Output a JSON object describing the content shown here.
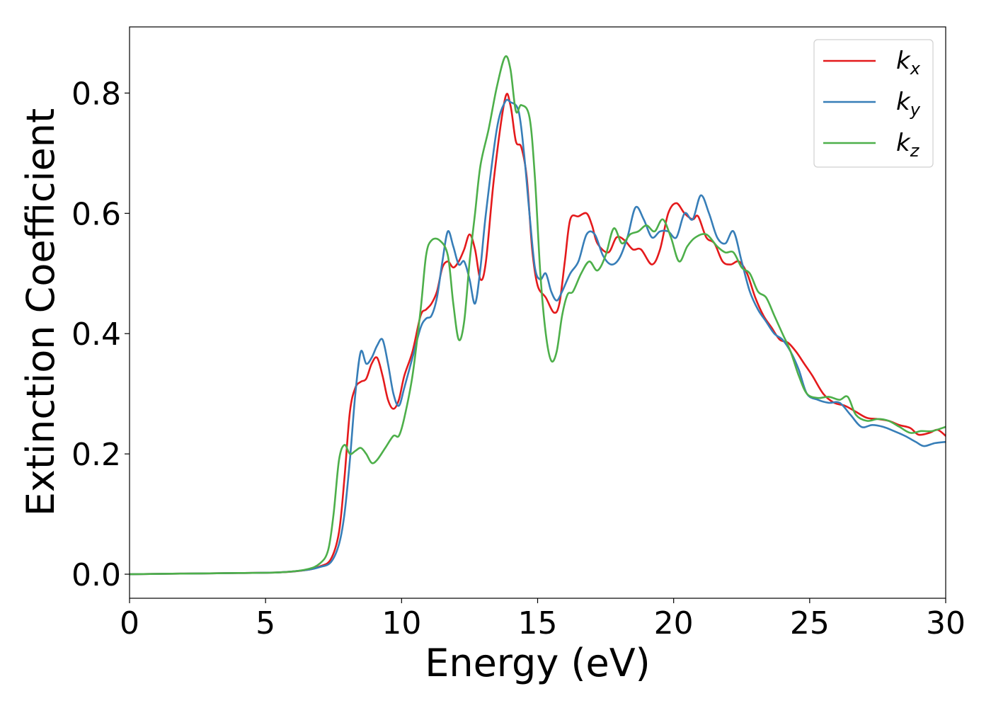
{
  "chart_data": {
    "type": "line",
    "xlabel": "Energy (eV)",
    "ylabel": "Extinction Coefficient",
    "xlim": [
      0,
      30
    ],
    "ylim": [
      -0.04,
      0.91
    ],
    "x_ticks": [
      "0",
      "5",
      "10",
      "15",
      "20",
      "25",
      "30"
    ],
    "y_ticks": [
      "0.0",
      "0.2",
      "0.4",
      "0.6",
      "0.8"
    ],
    "grid": false,
    "legend_position": "top-right",
    "series": [
      {
        "name": "kx",
        "base": "k",
        "sub": "x",
        "color": "#e41a1c",
        "points": [
          [
            0,
            0
          ],
          [
            2,
            0.001
          ],
          [
            4,
            0.002
          ],
          [
            5.5,
            0.003
          ],
          [
            6.5,
            0.007
          ],
          [
            7,
            0.013
          ],
          [
            7.4,
            0.025
          ],
          [
            7.7,
            0.07
          ],
          [
            7.9,
            0.16
          ],
          [
            8.1,
            0.27
          ],
          [
            8.3,
            0.31
          ],
          [
            8.5,
            0.32
          ],
          [
            8.7,
            0.325
          ],
          [
            8.9,
            0.35
          ],
          [
            9.1,
            0.36
          ],
          [
            9.3,
            0.33
          ],
          [
            9.5,
            0.29
          ],
          [
            9.7,
            0.275
          ],
          [
            9.9,
            0.29
          ],
          [
            10.1,
            0.33
          ],
          [
            10.4,
            0.37
          ],
          [
            10.7,
            0.43
          ],
          [
            10.9,
            0.44
          ],
          [
            11.1,
            0.45
          ],
          [
            11.3,
            0.47
          ],
          [
            11.5,
            0.51
          ],
          [
            11.7,
            0.52
          ],
          [
            11.9,
            0.51
          ],
          [
            12.1,
            0.52
          ],
          [
            12.3,
            0.54
          ],
          [
            12.5,
            0.565
          ],
          [
            12.7,
            0.54
          ],
          [
            12.9,
            0.49
          ],
          [
            13.1,
            0.52
          ],
          [
            13.4,
            0.66
          ],
          [
            13.8,
            0.79
          ],
          [
            14.0,
            0.78
          ],
          [
            14.2,
            0.72
          ],
          [
            14.4,
            0.71
          ],
          [
            14.6,
            0.66
          ],
          [
            14.8,
            0.54
          ],
          [
            15.0,
            0.48
          ],
          [
            15.3,
            0.46
          ],
          [
            15.6,
            0.435
          ],
          [
            15.8,
            0.45
          ],
          [
            16.0,
            0.52
          ],
          [
            16.2,
            0.59
          ],
          [
            16.5,
            0.595
          ],
          [
            16.8,
            0.6
          ],
          [
            17.0,
            0.58
          ],
          [
            17.2,
            0.55
          ],
          [
            17.6,
            0.535
          ],
          [
            17.9,
            0.56
          ],
          [
            18.2,
            0.555
          ],
          [
            18.5,
            0.54
          ],
          [
            18.8,
            0.54
          ],
          [
            19.2,
            0.515
          ],
          [
            19.5,
            0.54
          ],
          [
            19.8,
            0.6
          ],
          [
            20.1,
            0.617
          ],
          [
            20.4,
            0.6
          ],
          [
            20.7,
            0.59
          ],
          [
            20.9,
            0.595
          ],
          [
            21.2,
            0.56
          ],
          [
            21.5,
            0.55
          ],
          [
            21.8,
            0.52
          ],
          [
            22.1,
            0.515
          ],
          [
            22.4,
            0.52
          ],
          [
            22.7,
            0.5
          ],
          [
            23.0,
            0.46
          ],
          [
            23.3,
            0.43
          ],
          [
            23.6,
            0.41
          ],
          [
            23.9,
            0.39
          ],
          [
            24.2,
            0.385
          ],
          [
            24.5,
            0.37
          ],
          [
            24.8,
            0.35
          ],
          [
            25.1,
            0.33
          ],
          [
            25.5,
            0.3
          ],
          [
            25.9,
            0.285
          ],
          [
            26.3,
            0.28
          ],
          [
            26.7,
            0.27
          ],
          [
            27.1,
            0.26
          ],
          [
            27.5,
            0.258
          ],
          [
            27.9,
            0.255
          ],
          [
            28.3,
            0.248
          ],
          [
            28.7,
            0.243
          ],
          [
            29.0,
            0.232
          ],
          [
            29.4,
            0.235
          ],
          [
            29.7,
            0.24
          ],
          [
            30,
            0.23
          ]
        ]
      },
      {
        "name": "ky",
        "base": "k",
        "sub": "y",
        "color": "#377eb8",
        "points": [
          [
            0,
            0
          ],
          [
            2,
            0.001
          ],
          [
            4,
            0.002
          ],
          [
            5.5,
            0.003
          ],
          [
            6.5,
            0.007
          ],
          [
            7,
            0.012
          ],
          [
            7.4,
            0.02
          ],
          [
            7.7,
            0.05
          ],
          [
            7.9,
            0.1
          ],
          [
            8.1,
            0.19
          ],
          [
            8.3,
            0.3
          ],
          [
            8.5,
            0.37
          ],
          [
            8.7,
            0.35
          ],
          [
            8.9,
            0.36
          ],
          [
            9.1,
            0.38
          ],
          [
            9.3,
            0.39
          ],
          [
            9.5,
            0.35
          ],
          [
            9.7,
            0.3
          ],
          [
            9.9,
            0.28
          ],
          [
            10.1,
            0.31
          ],
          [
            10.4,
            0.36
          ],
          [
            10.7,
            0.41
          ],
          [
            10.9,
            0.425
          ],
          [
            11.1,
            0.43
          ],
          [
            11.3,
            0.46
          ],
          [
            11.5,
            0.52
          ],
          [
            11.7,
            0.57
          ],
          [
            11.9,
            0.545
          ],
          [
            12.1,
            0.515
          ],
          [
            12.3,
            0.52
          ],
          [
            12.5,
            0.49
          ],
          [
            12.7,
            0.45
          ],
          [
            12.9,
            0.51
          ],
          [
            13.1,
            0.6
          ],
          [
            13.5,
            0.74
          ],
          [
            13.8,
            0.785
          ],
          [
            14.0,
            0.785
          ],
          [
            14.3,
            0.77
          ],
          [
            14.5,
            0.7
          ],
          [
            14.7,
            0.6
          ],
          [
            14.9,
            0.51
          ],
          [
            15.1,
            0.49
          ],
          [
            15.3,
            0.5
          ],
          [
            15.5,
            0.47
          ],
          [
            15.7,
            0.455
          ],
          [
            15.9,
            0.47
          ],
          [
            16.2,
            0.5
          ],
          [
            16.5,
            0.52
          ],
          [
            16.8,
            0.565
          ],
          [
            17.1,
            0.565
          ],
          [
            17.4,
            0.53
          ],
          [
            17.7,
            0.515
          ],
          [
            18.0,
            0.525
          ],
          [
            18.3,
            0.56
          ],
          [
            18.6,
            0.61
          ],
          [
            18.9,
            0.59
          ],
          [
            19.2,
            0.56
          ],
          [
            19.5,
            0.57
          ],
          [
            19.8,
            0.57
          ],
          [
            20.1,
            0.56
          ],
          [
            20.4,
            0.6
          ],
          [
            20.7,
            0.59
          ],
          [
            21.0,
            0.63
          ],
          [
            21.3,
            0.6
          ],
          [
            21.6,
            0.56
          ],
          [
            21.9,
            0.55
          ],
          [
            22.2,
            0.57
          ],
          [
            22.5,
            0.52
          ],
          [
            22.8,
            0.47
          ],
          [
            23.1,
            0.44
          ],
          [
            23.4,
            0.42
          ],
          [
            23.7,
            0.4
          ],
          [
            24.0,
            0.39
          ],
          [
            24.3,
            0.37
          ],
          [
            24.6,
            0.34
          ],
          [
            24.9,
            0.3
          ],
          [
            25.3,
            0.29
          ],
          [
            25.7,
            0.285
          ],
          [
            26.1,
            0.285
          ],
          [
            26.5,
            0.265
          ],
          [
            26.9,
            0.245
          ],
          [
            27.3,
            0.248
          ],
          [
            27.7,
            0.245
          ],
          [
            28.1,
            0.238
          ],
          [
            28.5,
            0.23
          ],
          [
            28.9,
            0.22
          ],
          [
            29.2,
            0.213
          ],
          [
            29.6,
            0.218
          ],
          [
            30,
            0.22
          ]
        ]
      },
      {
        "name": "kz",
        "base": "k",
        "sub": "z",
        "color": "#4daf4a",
        "points": [
          [
            0,
            0
          ],
          [
            2,
            0.001
          ],
          [
            4,
            0.002
          ],
          [
            5.5,
            0.003
          ],
          [
            6.5,
            0.008
          ],
          [
            7,
            0.018
          ],
          [
            7.3,
            0.04
          ],
          [
            7.5,
            0.1
          ],
          [
            7.7,
            0.19
          ],
          [
            7.9,
            0.215
          ],
          [
            8.1,
            0.2
          ],
          [
            8.3,
            0.205
          ],
          [
            8.5,
            0.21
          ],
          [
            8.7,
            0.2
          ],
          [
            8.9,
            0.185
          ],
          [
            9.1,
            0.19
          ],
          [
            9.4,
            0.21
          ],
          [
            9.7,
            0.23
          ],
          [
            9.9,
            0.23
          ],
          [
            10.1,
            0.26
          ],
          [
            10.4,
            0.33
          ],
          [
            10.7,
            0.44
          ],
          [
            10.9,
            0.53
          ],
          [
            11.1,
            0.555
          ],
          [
            11.4,
            0.555
          ],
          [
            11.7,
            0.53
          ],
          [
            11.9,
            0.45
          ],
          [
            12.1,
            0.39
          ],
          [
            12.3,
            0.42
          ],
          [
            12.5,
            0.52
          ],
          [
            12.7,
            0.6
          ],
          [
            12.9,
            0.68
          ],
          [
            13.2,
            0.74
          ],
          [
            13.5,
            0.81
          ],
          [
            13.8,
            0.86
          ],
          [
            14.0,
            0.84
          ],
          [
            14.2,
            0.77
          ],
          [
            14.4,
            0.78
          ],
          [
            14.7,
            0.76
          ],
          [
            14.9,
            0.66
          ],
          [
            15.1,
            0.5
          ],
          [
            15.3,
            0.4
          ],
          [
            15.5,
            0.355
          ],
          [
            15.7,
            0.37
          ],
          [
            15.9,
            0.43
          ],
          [
            16.1,
            0.465
          ],
          [
            16.3,
            0.47
          ],
          [
            16.6,
            0.5
          ],
          [
            16.9,
            0.52
          ],
          [
            17.2,
            0.505
          ],
          [
            17.5,
            0.53
          ],
          [
            17.8,
            0.575
          ],
          [
            18.1,
            0.55
          ],
          [
            18.4,
            0.565
          ],
          [
            18.7,
            0.57
          ],
          [
            19.0,
            0.58
          ],
          [
            19.3,
            0.57
          ],
          [
            19.6,
            0.59
          ],
          [
            19.9,
            0.56
          ],
          [
            20.2,
            0.52
          ],
          [
            20.5,
            0.545
          ],
          [
            20.8,
            0.56
          ],
          [
            21.2,
            0.565
          ],
          [
            21.6,
            0.545
          ],
          [
            21.9,
            0.535
          ],
          [
            22.2,
            0.535
          ],
          [
            22.5,
            0.51
          ],
          [
            22.8,
            0.5
          ],
          [
            23.1,
            0.47
          ],
          [
            23.4,
            0.46
          ],
          [
            23.7,
            0.43
          ],
          [
            24.0,
            0.4
          ],
          [
            24.3,
            0.37
          ],
          [
            24.6,
            0.33
          ],
          [
            24.9,
            0.3
          ],
          [
            25.3,
            0.293
          ],
          [
            25.7,
            0.295
          ],
          [
            26.1,
            0.29
          ],
          [
            26.4,
            0.295
          ],
          [
            26.7,
            0.265
          ],
          [
            27.1,
            0.255
          ],
          [
            27.5,
            0.258
          ],
          [
            27.9,
            0.255
          ],
          [
            28.3,
            0.245
          ],
          [
            28.7,
            0.235
          ],
          [
            29.1,
            0.238
          ],
          [
            29.5,
            0.238
          ],
          [
            30,
            0.245
          ]
        ]
      }
    ]
  }
}
